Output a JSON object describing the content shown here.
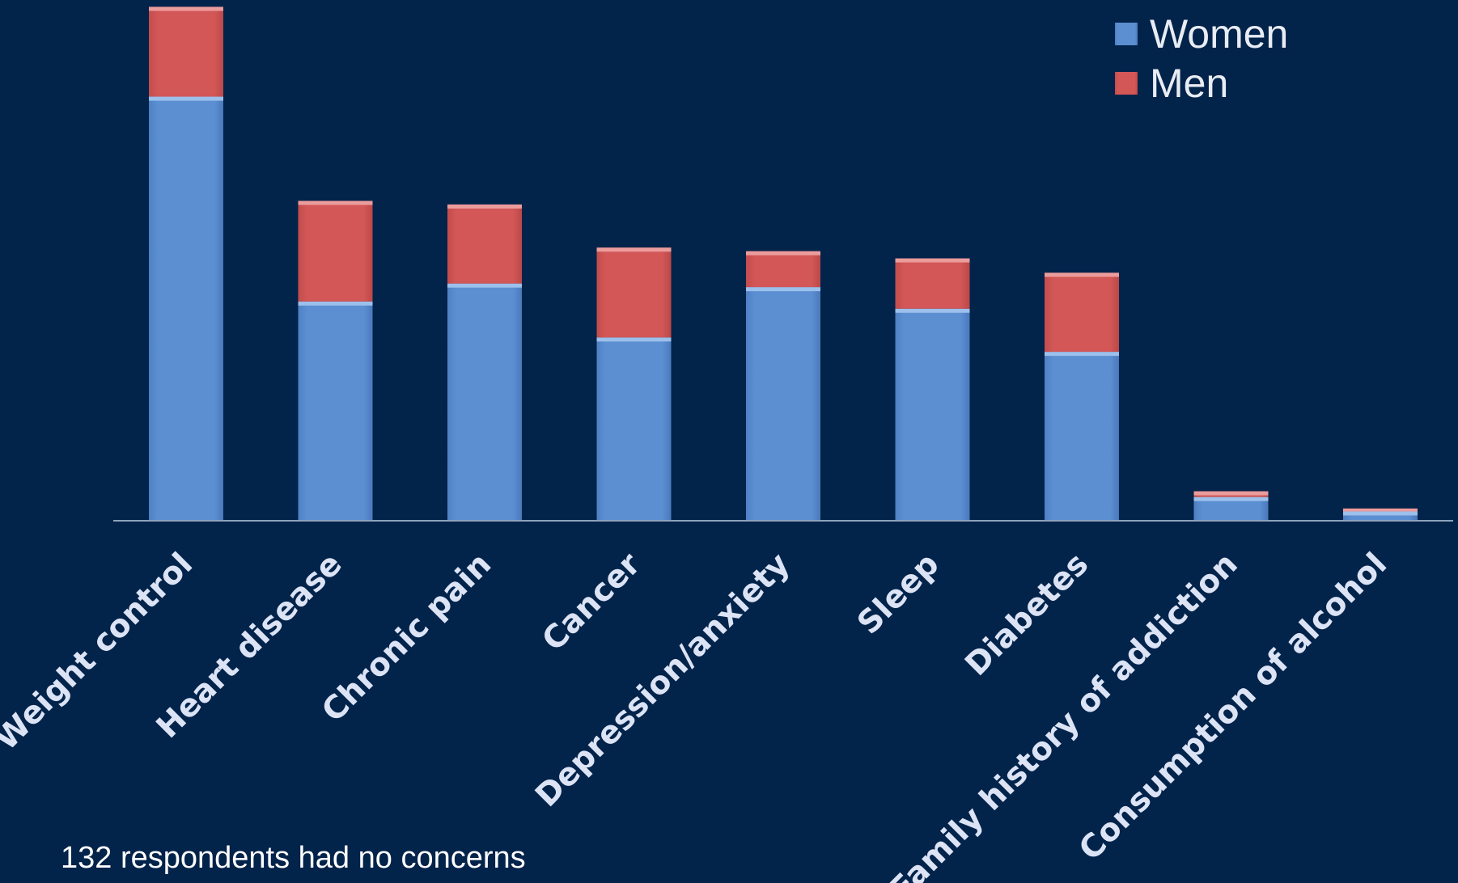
{
  "chart_data": {
    "type": "bar",
    "stacked": true,
    "title": "",
    "xlabel": "",
    "ylabel": "",
    "categories": [
      "Weight control",
      "Heart disease",
      "Chronic pain",
      "Cancer",
      "Depression/anxiety",
      "Sleep",
      "Diabetes",
      "Family history of addiction",
      "Consumption of alcohol"
    ],
    "series": [
      {
        "name": "Women",
        "color": "#5b8ed1",
        "values": [
          59,
          30.5,
          33,
          25.5,
          32.5,
          29.5,
          23.5,
          3.3,
          1.3
        ]
      },
      {
        "name": "Men",
        "color": "#d05555",
        "values": [
          12.5,
          14,
          11,
          12.5,
          5,
          7,
          11,
          0.8,
          0.4
        ]
      }
    ],
    "ylim": [
      0,
      72
    ],
    "grid": false,
    "legend": {
      "position": "top-right"
    }
  },
  "footnote": "132 respondents had no concerns"
}
